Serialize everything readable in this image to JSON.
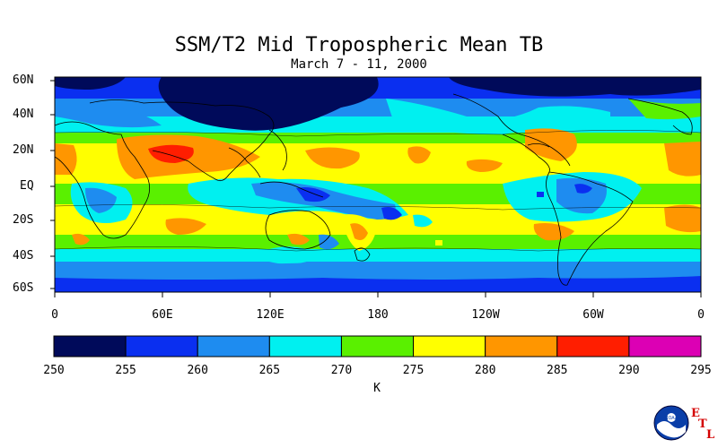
{
  "title": "SSM/T2 Mid Tropospheric Mean TB",
  "subtitle": "March 7 - 11, 2000",
  "lat_labels": [
    "60N",
    "40N",
    "20N",
    "EQ",
    "20S",
    "40S",
    "60S"
  ],
  "lon_labels": [
    "0",
    "60E",
    "120E",
    "180",
    "120W",
    "60W",
    "0"
  ],
  "colorbar": {
    "colors": [
      "#000a5a",
      "#0a2ff0",
      "#1e8cf0",
      "#00f0f0",
      "#5af000",
      "#ffff00",
      "#ff9600",
      "#ff1e00",
      "#dc00b4"
    ],
    "ticks": [
      "250",
      "255",
      "260",
      "265",
      "270",
      "275",
      "280",
      "285",
      "290",
      "295"
    ],
    "units": "K"
  },
  "logo": {
    "org": "NOAA",
    "letters": [
      "E",
      "T",
      "L"
    ]
  }
}
